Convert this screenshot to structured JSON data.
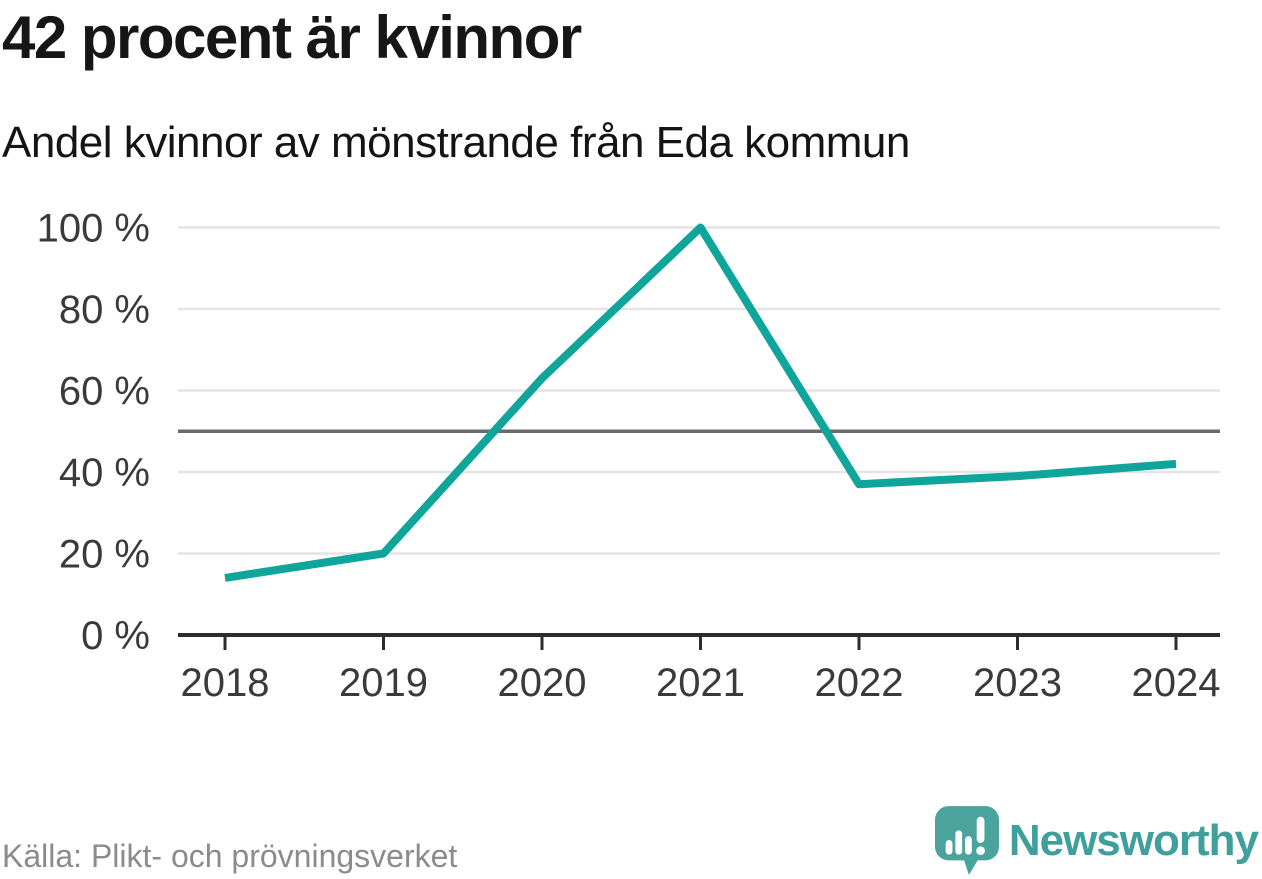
{
  "title": "42 procent är kvinnor",
  "subtitle": "Andel kvinnor av mönstrande från Eda kommun",
  "footer": {
    "source": "Källa: Plikt- och prövningsverket"
  },
  "logo": {
    "text": "Newsworthy",
    "icon": "newsworthy-speech-bubble-bar-chart-icon"
  },
  "colors": {
    "line": "#0fa59b",
    "gridline": "#e4e4e4",
    "reference_line": "#6a6a70",
    "axis": "#2d2d2d",
    "title_text": "#161616",
    "tick_text": "#3a3a3a",
    "source_text": "#8b8b8b",
    "logo_teal": "#4aa39d"
  },
  "chart_data": {
    "type": "line",
    "title": "42 procent är kvinnor",
    "subtitle": "Andel kvinnor av mönstrande från Eda kommun",
    "series": [
      {
        "name": "Andel kvinnor av mönstrande",
        "values": [
          14,
          20,
          63,
          100,
          37,
          39,
          42
        ]
      }
    ],
    "x": [
      "2018",
      "2019",
      "2020",
      "2021",
      "2022",
      "2023",
      "2024"
    ],
    "xlabel": "",
    "ylabel": "",
    "unit": "%",
    "ylim": [
      0,
      100
    ],
    "y_ticks": [
      0,
      20,
      40,
      60,
      80,
      100
    ],
    "y_tick_suffix": " %",
    "reference_line": 50,
    "grid": true,
    "legend_position": "none",
    "line_color": "#0fa59b",
    "source": "Källa: Plikt- och prövningsverket"
  }
}
